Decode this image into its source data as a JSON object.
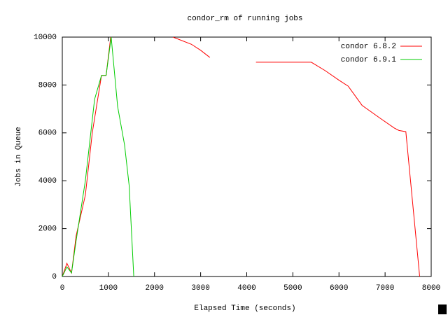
{
  "chart_data": {
    "type": "line",
    "title": "condor_rm of running jobs",
    "x_label": "Elapsed Time (seconds)",
    "y_label": "Jobs in Queue",
    "xlim": [
      0,
      8000
    ],
    "ylim": [
      0,
      10000
    ],
    "xticks": [
      0,
      1000,
      2000,
      3000,
      4000,
      5000,
      6000,
      7000,
      8000
    ],
    "yticks": [
      0,
      2000,
      4000,
      6000,
      8000,
      10000
    ],
    "legend": "top-right",
    "series": [
      {
        "name": "condor 6.8.2",
        "color": "#ff0000",
        "x": [
          0,
          100,
          200,
          300,
          500,
          650,
          850,
          950,
          1050,
          1100,
          2400,
          2800,
          3000,
          3200,
          3300,
          4200,
          5400,
          5700,
          6000,
          6200,
          6500,
          6900,
          7200,
          7300,
          7450,
          7750
        ],
        "values": [
          0,
          550,
          150,
          1700,
          3400,
          6000,
          8400,
          8400,
          10000,
          null,
          10000,
          9700,
          9450,
          9150,
          null,
          8950,
          8950,
          8600,
          8200,
          7950,
          7150,
          6600,
          6200,
          6100,
          6050,
          0
        ]
      },
      {
        "name": "condor 6.9.1",
        "color": "#00cc00",
        "x": [
          0,
          100,
          200,
          300,
          500,
          700,
          850,
          950,
          1060,
          1200,
          1350,
          1450,
          1550
        ],
        "values": [
          0,
          400,
          150,
          1500,
          4000,
          7400,
          8400,
          8400,
          10000,
          7100,
          5500,
          3800,
          0
        ]
      }
    ]
  }
}
